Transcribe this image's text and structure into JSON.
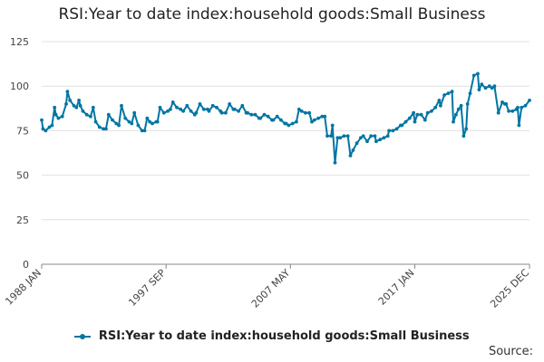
{
  "chart_data": {
    "type": "line",
    "title": "RSI:Year to date index:household goods:Small Business",
    "xlabel": "",
    "ylabel": "",
    "ylim": [
      0,
      125
    ],
    "yticks": [
      0,
      25,
      50,
      75,
      100,
      125
    ],
    "xlim": [
      1988.0,
      2025.917
    ],
    "xticks": [
      {
        "label": "1988 JAN",
        "value": 1988.0
      },
      {
        "label": "1997 SEP",
        "value": 1997.667
      },
      {
        "label": "2007 MAY",
        "value": 2007.333
      },
      {
        "label": "2017 JAN",
        "value": 2017.0
      },
      {
        "label": "2025 DEC",
        "value": 2025.917
      }
    ],
    "grid": true,
    "legend_position": "bottom",
    "color": "#0075a3",
    "series": [
      {
        "name": "RSI:Year to date index:household goods:Small Business",
        "x": [
          1988.0,
          1988.1,
          1988.3,
          1988.6,
          1988.8,
          1989.0,
          1989.1,
          1989.3,
          1989.6,
          1989.9,
          1990.0,
          1990.2,
          1990.5,
          1990.7,
          1990.9,
          1991.0,
          1991.2,
          1991.5,
          1991.8,
          1992.0,
          1992.2,
          1992.5,
          1992.8,
          1993.0,
          1993.2,
          1993.5,
          1993.8,
          1994.0,
          1994.2,
          1994.5,
          1994.8,
          1995.0,
          1995.2,
          1995.5,
          1995.8,
          1996.0,
          1996.2,
          1996.4,
          1996.6,
          1996.9,
          1997.0,
          1997.2,
          1997.5,
          1997.8,
          1998.0,
          1998.2,
          1998.5,
          1998.8,
          1999.0,
          1999.3,
          1999.6,
          1999.9,
          2000.0,
          2000.3,
          2000.6,
          2000.9,
          2001.0,
          2001.3,
          2001.6,
          2001.9,
          2002.0,
          2002.3,
          2002.6,
          2002.9,
          2003.0,
          2003.3,
          2003.6,
          2003.9,
          2004.0,
          2004.3,
          2004.6,
          2004.9,
          2005.0,
          2005.3,
          2005.6,
          2005.9,
          2006.0,
          2006.3,
          2006.6,
          2006.9,
          2007.0,
          2007.2,
          2007.5,
          2007.8,
          2008.0,
          2008.2,
          2008.5,
          2008.8,
          2009.0,
          2009.2,
          2009.5,
          2009.8,
          2010.0,
          2010.2,
          2010.5,
          2010.6,
          2010.8,
          2011.0,
          2011.2,
          2011.5,
          2011.8,
          2012.0,
          2012.2,
          2012.5,
          2012.8,
          2013.0,
          2013.3,
          2013.6,
          2013.9,
          2014.0,
          2014.3,
          2014.6,
          2014.9,
          2015.0,
          2015.3,
          2015.6,
          2015.9,
          2016.0,
          2016.3,
          2016.6,
          2016.9,
          2017.0,
          2017.2,
          2017.5,
          2017.8,
          2018.0,
          2018.3,
          2018.6,
          2018.9,
          2019.0,
          2019.3,
          2019.6,
          2019.9,
          2020.0,
          2020.2,
          2020.4,
          2020.6,
          2020.8,
          2021.0,
          2021.1,
          2021.3,
          2021.6,
          2021.9,
          2022.0,
          2022.2,
          2022.5,
          2022.8,
          2023.0,
          2023.2,
          2023.5,
          2023.8,
          2024.0,
          2024.1,
          2024.3,
          2024.6,
          2024.9,
          2025.0,
          2025.1,
          2025.3,
          2025.6,
          2025.917
        ],
        "values": [
          81,
          76,
          75,
          77,
          78,
          88,
          84,
          82,
          83,
          90,
          97,
          92,
          89,
          88,
          92,
          89,
          86,
          84,
          83,
          88,
          80,
          77,
          76,
          76,
          84,
          81,
          79,
          78,
          89,
          82,
          80,
          79,
          85,
          78,
          75,
          75,
          82,
          80,
          79,
          80,
          80,
          88,
          85,
          86,
          87,
          91,
          88,
          87,
          86,
          89,
          86,
          84,
          85,
          90,
          87,
          87,
          86,
          89,
          88,
          86,
          85,
          85,
          90,
          87,
          87,
          86,
          89,
          85,
          85,
          84,
          84,
          82,
          82,
          84,
          83,
          81,
          81,
          83,
          81,
          79,
          79,
          78,
          79,
          80,
          87,
          86,
          85,
          85,
          80,
          81,
          82,
          83,
          83,
          72,
          72,
          78,
          57,
          71,
          71,
          72,
          72,
          61,
          64,
          68,
          71,
          72,
          69,
          72,
          72,
          69,
          70,
          71,
          72,
          75,
          75,
          76,
          78,
          78,
          80,
          82,
          85,
          80,
          84,
          84,
          81,
          85,
          86,
          88,
          92,
          89,
          95,
          96,
          97,
          80,
          84,
          87,
          89,
          72,
          76,
          90,
          96,
          106,
          107,
          98,
          101,
          99,
          100,
          99,
          100,
          85,
          91,
          90,
          90,
          86,
          86,
          87,
          88,
          78,
          88,
          89,
          92
        ]
      }
    ],
    "source_label": "Source:"
  }
}
